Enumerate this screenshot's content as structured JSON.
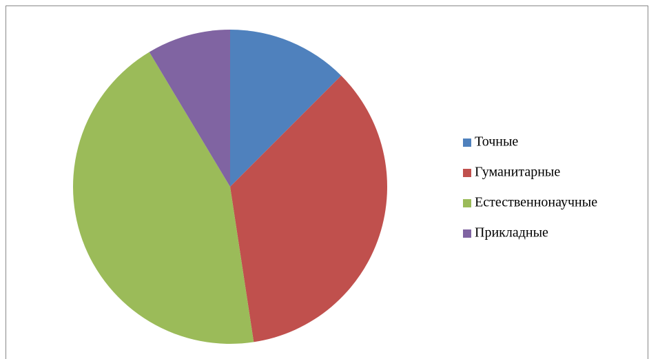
{
  "chart_data": {
    "type": "pie",
    "categories": [
      "Точные",
      "Гуманитарные",
      "Естественнонаучные",
      "Прикладные"
    ],
    "values": [
      12.5,
      35.1,
      43.8,
      8.6
    ],
    "colors": [
      "#4f81bd",
      "#c0504d",
      "#9bbb59",
      "#8064a2"
    ],
    "legend": "right"
  }
}
